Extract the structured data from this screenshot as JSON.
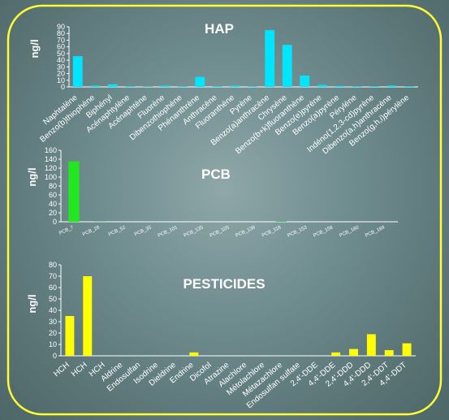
{
  "chart_data": [
    {
      "type": "bar",
      "title": "HAP",
      "ylabel": "ng/l",
      "xlabel": "",
      "ylim": [
        0,
        90
      ],
      "yticks": [
        0,
        10,
        20,
        30,
        40,
        50,
        60,
        70,
        80,
        90
      ],
      "color": "#00e5ff",
      "categories": [
        "Naphtalène",
        "Benzo(b)thiophène",
        "Biphényl",
        "Acénaphtylène",
        "Acénaphtène",
        "Fluorène",
        "Dibenzothiophène",
        "Phénanthrène",
        "Anthracène",
        "Fluoranthène",
        "Pyrène",
        "Benzo(a)anthracène",
        "Chrysène",
        "Benzo(b+k)fluoranthène",
        "Benzo(e)pyrène",
        "Benzo(a)pyrène",
        "Pérylène",
        "Indéno(1,2,3-cd)pyrène",
        "Dibenzo(a,h)anthracène",
        "Benzo(g,h,i)pérylène"
      ],
      "values": [
        46,
        2,
        4,
        1,
        0.5,
        2,
        1,
        15,
        1,
        2,
        1,
        85,
        63,
        17,
        3,
        1.5,
        1,
        1,
        2,
        1
      ],
      "grid": false,
      "legend": false
    },
    {
      "type": "bar",
      "title": "PCB",
      "ylabel": "ng/l",
      "xlabel": "",
      "ylim": [
        0,
        160
      ],
      "yticks": [
        0,
        20,
        40,
        60,
        80,
        100,
        120,
        140,
        160
      ],
      "color": "#22e622",
      "categories": [
        "PCB_7",
        "PCB_28",
        "PCB_52",
        "PCB_35",
        "PCB_101",
        "PCB_135",
        "PCB_105",
        "PCB_138",
        "PCB_118",
        "PCB_153",
        "PCB_156",
        "PCB_180",
        "PCB_169"
      ],
      "values": [
        135,
        0.3,
        0,
        0,
        0,
        0,
        0,
        0,
        1,
        0,
        0,
        0,
        0
      ],
      "grid": false,
      "legend": false
    },
    {
      "type": "bar",
      "title": "PESTICIDES",
      "ylabel": "ng/l",
      "xlabel": "",
      "ylim": [
        0,
        80
      ],
      "yticks": [
        0,
        10,
        20,
        30,
        40,
        50,
        60,
        70,
        80
      ],
      "color": "#ffff00",
      "categories": [
        "HCH",
        "HCH",
        "HCH",
        "Aldrine",
        "Endosulfan",
        "Isodrine",
        "Dieldrine",
        "Endrine",
        "Dicofol",
        "Atrazine",
        "Alachlore",
        "Métolachlore",
        "Métazachlore",
        "Endosulfan sulfate",
        "2,4'-DDE",
        "4,4'-DDE",
        "2,4'-DDD",
        "4,4'-DDD",
        "2,4'-DDT",
        "4,4'-DDT"
      ],
      "values": [
        35,
        70,
        0,
        0,
        0,
        0,
        0,
        3,
        0,
        0,
        0,
        0,
        0,
        0,
        0,
        3,
        6,
        19,
        5,
        11
      ],
      "grid": false,
      "legend": false
    }
  ]
}
